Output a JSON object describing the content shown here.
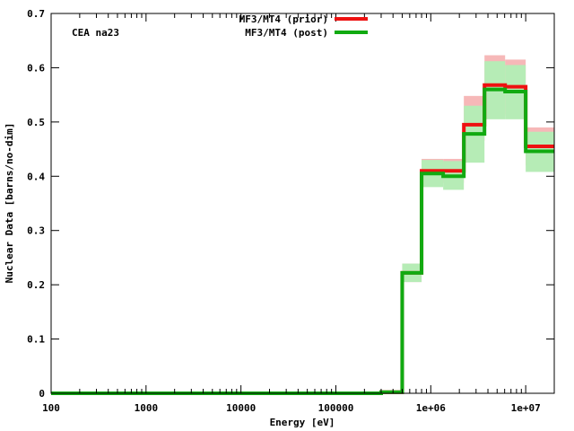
{
  "chart_data": {
    "type": "line",
    "title": "",
    "annotation": "CEA na23",
    "xlabel": "Energy [eV]",
    "ylabel": "Nuclear Data [barns/no-dim]",
    "xscale": "log",
    "xlim": [
      100,
      20000000
    ],
    "ylim": [
      0,
      0.7
    ],
    "x_ticks": [
      {
        "value": 100,
        "label": "100"
      },
      {
        "value": 1000,
        "label": "1000"
      },
      {
        "value": 10000,
        "label": "10000"
      },
      {
        "value": 100000,
        "label": "100000"
      },
      {
        "value": 1000000,
        "label": "1e+06"
      },
      {
        "value": 10000000,
        "label": "1e+07"
      }
    ],
    "y_ticks": [
      {
        "value": 0,
        "label": "0"
      },
      {
        "value": 0.1,
        "label": "0.1"
      },
      {
        "value": 0.2,
        "label": "0.2"
      },
      {
        "value": 0.3,
        "label": "0.3"
      },
      {
        "value": 0.4,
        "label": "0.4"
      },
      {
        "value": 0.5,
        "label": "0.5"
      },
      {
        "value": 0.6,
        "label": "0.6"
      },
      {
        "value": 0.7,
        "label": "0.7"
      }
    ],
    "grid": false,
    "legend_position": "top-center",
    "bin_edges": [
      100,
      300000,
      500000,
      800000,
      1350000,
      2230000,
      3680000,
      6070000,
      10000000,
      20000000
    ],
    "series": [
      {
        "name": "MF3/MT4 (prior)",
        "color": "#ee1111",
        "band_color": "#f6b8b8",
        "values": [
          0.0,
          0.002,
          0.222,
          0.41,
          0.41,
          0.495,
          0.568,
          0.565,
          0.455
        ],
        "lower": [
          0.0,
          0.001,
          0.205,
          0.388,
          0.388,
          0.465,
          0.512,
          0.515,
          0.42
        ],
        "upper": [
          0.0,
          0.003,
          0.239,
          0.432,
          0.432,
          0.548,
          0.623,
          0.615,
          0.49
        ]
      },
      {
        "name": "MF3/MT4 (post)",
        "color": "#11aa11",
        "band_color": "#b6ecb6",
        "values": [
          0.0,
          0.002,
          0.222,
          0.405,
          0.4,
          0.478,
          0.56,
          0.556,
          0.446
        ],
        "lower": [
          0.0,
          0.001,
          0.205,
          0.38,
          0.375,
          0.425,
          0.505,
          0.505,
          0.408
        ],
        "upper": [
          0.0,
          0.003,
          0.239,
          0.43,
          0.428,
          0.53,
          0.612,
          0.605,
          0.482
        ]
      }
    ]
  }
}
